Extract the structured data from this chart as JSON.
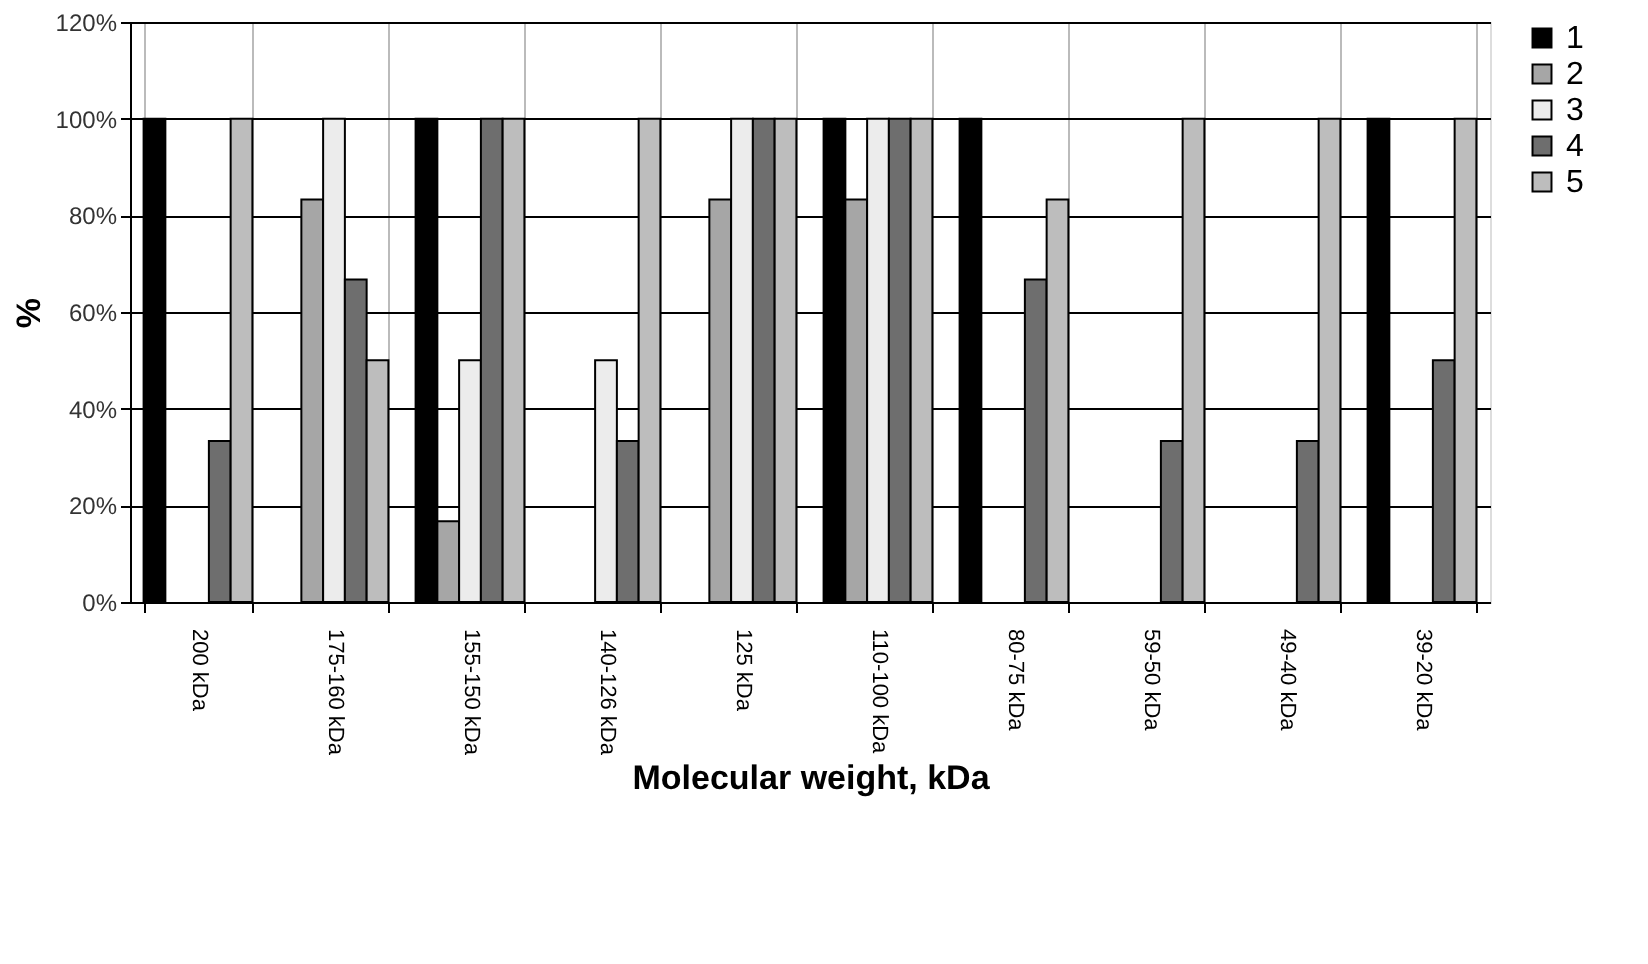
{
  "chart_data": {
    "type": "bar",
    "xlabel": "Molecular weight, kDa",
    "ylabel": "%",
    "categories": [
      "200 kDa",
      "175-160 kDa",
      "155-150 kDa",
      "140-126 kDa",
      "125 kDa",
      "110-100 kDa",
      "80-75 kDa",
      "59-50 kDa",
      "49-40 kDa",
      "39-20 kDa"
    ],
    "series": [
      {
        "name": "1",
        "color": "#000000",
        "values": [
          100,
          0,
          100,
          0,
          0,
          100,
          100,
          0,
          0,
          100
        ]
      },
      {
        "name": "2",
        "color": "#a6a6a6",
        "values": [
          0,
          83.3,
          16.7,
          0,
          83.3,
          83.3,
          0,
          0,
          0,
          0
        ]
      },
      {
        "name": "3",
        "color": "#ececec",
        "values": [
          0,
          100,
          50,
          50,
          100,
          100,
          0,
          0,
          0,
          0
        ]
      },
      {
        "name": "4",
        "color": "#6e6e6e",
        "values": [
          33.3,
          66.7,
          100,
          33.3,
          100,
          100,
          66.7,
          33.3,
          33.3,
          50
        ]
      },
      {
        "name": "5",
        "color": "#bdbdbd",
        "values": [
          100,
          50,
          100,
          100,
          100,
          100,
          83.3,
          100,
          100,
          100
        ]
      }
    ],
    "ylim": [
      0,
      120
    ],
    "yticks": [
      {
        "value": 0,
        "label": "0%"
      },
      {
        "value": 20,
        "label": "20%"
      },
      {
        "value": 40,
        "label": "40%"
      },
      {
        "value": 60,
        "label": "60%"
      },
      {
        "value": 80,
        "label": "80%"
      },
      {
        "value": 100,
        "label": "100%"
      },
      {
        "value": 120,
        "label": "120%"
      }
    ],
    "grid": true,
    "legend": "top right"
  }
}
